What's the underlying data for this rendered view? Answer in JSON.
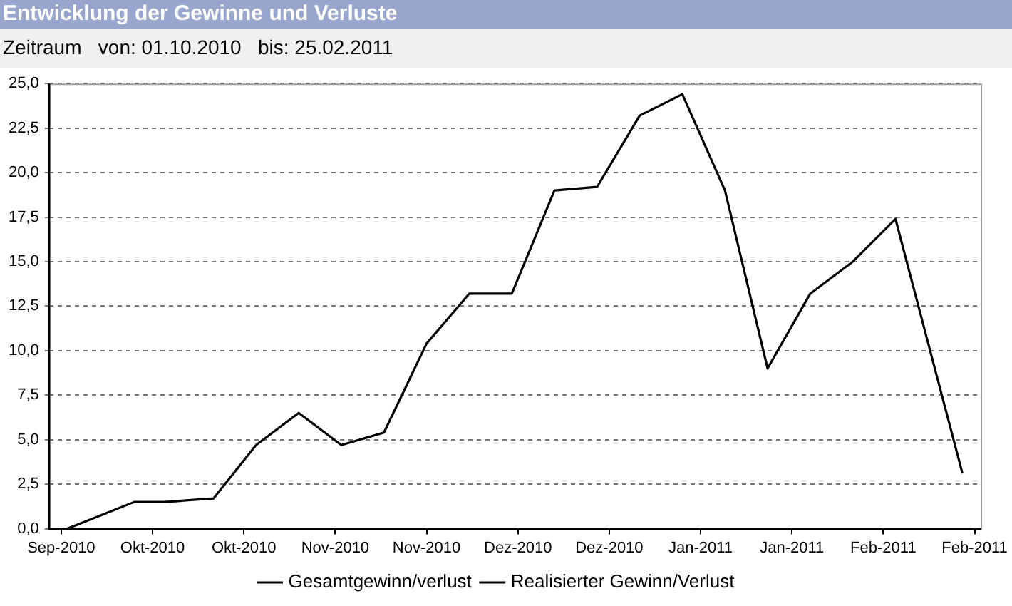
{
  "chart_data": {
    "type": "line",
    "title": "Entwicklung der Gewinne und Verluste",
    "subtitle": "Zeitraum   von: 01.10.2010   bis: 25.02.2011",
    "x": [
      "2010-10-01",
      "2010-10-12",
      "2010-10-17",
      "2010-10-25",
      "2010-11-01",
      "2010-11-08",
      "2010-11-15",
      "2010-11-22",
      "2010-11-29",
      "2010-12-06",
      "2010-12-13",
      "2010-12-20",
      "2010-12-27",
      "2011-01-03",
      "2011-01-10",
      "2011-01-17",
      "2011-01-24",
      "2011-01-31",
      "2011-02-07",
      "2011-02-14",
      "2011-02-25"
    ],
    "series": [
      {
        "name": "Gesamtgewinn/verlust",
        "color": "#000000",
        "values": [
          0,
          1.5,
          1.5,
          1.7,
          4.7,
          6.5,
          4.7,
          5.4,
          10.4,
          13.2,
          13.2,
          19.0,
          19.2,
          23.2,
          24.4,
          19.0,
          9.0,
          13.2,
          15.0,
          17.4,
          3.1
        ]
      },
      {
        "name": "Realisierter Gewinn/Verlust",
        "color": "#000000",
        "values": [
          null,
          null,
          null,
          null,
          null,
          null,
          null,
          null,
          null,
          null,
          null,
          null,
          null,
          null,
          null,
          null,
          null,
          null,
          null,
          null,
          null
        ]
      }
    ],
    "xlim": [
      "2010-09-28",
      "2011-02-28"
    ],
    "xticks": [
      {
        "value": "2010-09-30",
        "label": "Sep-2010"
      },
      {
        "value": "2010-10-15",
        "label": "Okt-2010"
      },
      {
        "value": "2010-10-30",
        "label": "Okt-2010"
      },
      {
        "value": "2010-11-14",
        "label": "Nov-2010"
      },
      {
        "value": "2010-11-29",
        "label": "Nov-2010"
      },
      {
        "value": "2010-12-14",
        "label": "Dez-2010"
      },
      {
        "value": "2010-12-29",
        "label": "Dez-2010"
      },
      {
        "value": "2011-01-13",
        "label": "Jan-2011"
      },
      {
        "value": "2011-01-28",
        "label": "Jan-2011"
      },
      {
        "value": "2011-02-12",
        "label": "Feb-2011"
      },
      {
        "value": "2011-02-27",
        "label": "Feb-2011"
      }
    ],
    "ylim": [
      0,
      25
    ],
    "yticks": [
      {
        "value": 0,
        "label": "0,0"
      },
      {
        "value": 2.5,
        "label": "2,5"
      },
      {
        "value": 5,
        "label": "5,0"
      },
      {
        "value": 7.5,
        "label": "7,5"
      },
      {
        "value": 10,
        "label": "10,0"
      },
      {
        "value": 12.5,
        "label": "12,5"
      },
      {
        "value": 15,
        "label": "15,0"
      },
      {
        "value": 17.5,
        "label": "17,5"
      },
      {
        "value": 20,
        "label": "20,0"
      },
      {
        "value": 22.5,
        "label": "22,5"
      },
      {
        "value": 25,
        "label": "25,0"
      }
    ],
    "grid": "y",
    "legend": "bottom",
    "marker": "none",
    "line_style": "solid"
  }
}
